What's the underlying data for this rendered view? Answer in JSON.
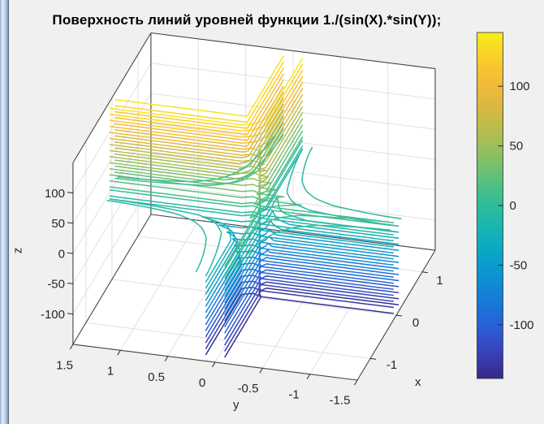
{
  "figure": {
    "title": "Поверхность линий уровней функции 1./(sin(X).*sin(Y));",
    "background_color": "#f0f0f0",
    "wall_color": "#ffffff",
    "grid_color": "#e0e0e0",
    "edge_color": "#444444",
    "tick_color": "#262626"
  },
  "axes": {
    "xlabel": "x",
    "ylabel": "y",
    "zlabel": "z",
    "x_ticks": [
      "-1",
      "0",
      "1"
    ],
    "x_tick_values": [
      -1,
      0,
      1
    ],
    "y_ticks": [
      "1.5",
      "1",
      "0.5",
      "0",
      "-0.5",
      "-1",
      "-1.5"
    ],
    "y_tick_values": [
      1.5,
      1,
      0.5,
      0,
      -0.5,
      -1,
      -1.5
    ],
    "z_ticks": [
      "100",
      "50",
      "0",
      "-50",
      "-100"
    ],
    "z_tick_values": [
      100,
      50,
      0,
      -50,
      -100
    ],
    "x_range": [
      -1.5,
      1.5
    ],
    "y_range": [
      -1.5,
      1.5
    ],
    "z_range": [
      -150,
      150
    ]
  },
  "colorbar": {
    "ticks": [
      "100",
      "50",
      "0",
      "-50",
      "-100"
    ],
    "tick_values": [
      100,
      50,
      0,
      -50,
      -100
    ],
    "range": [
      -145,
      145
    ]
  },
  "colormap_stops": [
    [
      0.0,
      "#352a87"
    ],
    [
      0.05,
      "#3839a8"
    ],
    [
      0.1,
      "#344bc6"
    ],
    [
      0.15,
      "#2a5fd7"
    ],
    [
      0.2,
      "#1b72d8"
    ],
    [
      0.25,
      "#1482d6"
    ],
    [
      0.3,
      "#0d93d2"
    ],
    [
      0.35,
      "#09a2c8"
    ],
    [
      0.4,
      "#10aebd"
    ],
    [
      0.45,
      "#1cb7ac"
    ],
    [
      0.5,
      "#2fbc9b"
    ],
    [
      0.55,
      "#4abf87"
    ],
    [
      0.6,
      "#6cc071"
    ],
    [
      0.65,
      "#8fbf61"
    ],
    [
      0.7,
      "#aebd53"
    ],
    [
      0.75,
      "#c9ba49"
    ],
    [
      0.8,
      "#e0b83f"
    ],
    [
      0.85,
      "#f0bb38"
    ],
    [
      0.9,
      "#f8c52f"
    ],
    [
      0.95,
      "#f8d826"
    ],
    [
      1.0,
      "#f9ec1a"
    ]
  ],
  "chart_data": {
    "type": "contour3",
    "title": "Поверхность линий уровней функции 1./(sin(X).*sin(Y));",
    "formula": "Z = 1./(sin(X).*sin(Y))",
    "x_range": [
      -1.5,
      1.5
    ],
    "y_range": [
      -1.5,
      1.5
    ],
    "grid_step": 0.1,
    "zlim": [
      -150,
      150
    ],
    "caxis": [
      -145,
      145
    ],
    "levels": [
      -140,
      -130,
      -120,
      -110,
      -100,
      -90,
      -80,
      -70,
      -60,
      -50,
      -40,
      -30,
      -20,
      -10,
      -5,
      5,
      10,
      20,
      30,
      40,
      50,
      60,
      70,
      80,
      90,
      100,
      110,
      120,
      130,
      140
    ],
    "colormap": "parula",
    "view": {
      "azimuth": -37.5,
      "elevation": 30
    },
    "grid": true,
    "colorbar_position": "right"
  }
}
